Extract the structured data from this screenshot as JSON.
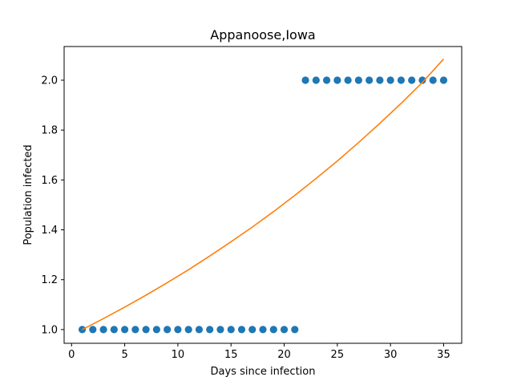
{
  "chart_data": {
    "type": "scatter",
    "title": "Appanoose,Iowa",
    "xlabel": "Days since infection",
    "ylabel": "Population infected",
    "xlim": [
      -0.7,
      36.7
    ],
    "ylim": [
      0.945,
      2.135
    ],
    "xticks": [
      0,
      5,
      10,
      15,
      20,
      25,
      30,
      35
    ],
    "yticks": [
      1.0,
      1.2,
      1.4,
      1.6,
      1.8,
      2.0
    ],
    "ytick_labels": [
      "1.0",
      "1.2",
      "1.4",
      "1.6",
      "1.8",
      "2.0"
    ],
    "grid": false,
    "series": [
      {
        "kind": "scatter",
        "color": "#1f77b4",
        "x": [
          1,
          2,
          3,
          4,
          5,
          6,
          7,
          8,
          9,
          10,
          11,
          12,
          13,
          14,
          15,
          16,
          17,
          18,
          19,
          20,
          21,
          22,
          23,
          24,
          25,
          26,
          27,
          28,
          29,
          30,
          31,
          32,
          33,
          34,
          35
        ],
        "y": [
          1,
          1,
          1,
          1,
          1,
          1,
          1,
          1,
          1,
          1,
          1,
          1,
          1,
          1,
          1,
          1,
          1,
          1,
          1,
          1,
          1,
          2,
          2,
          2,
          2,
          2,
          2,
          2,
          2,
          2,
          2,
          2,
          2,
          2,
          2
        ]
      },
      {
        "kind": "line",
        "color": "#ff7f0e",
        "x": [
          1,
          3,
          5,
          7,
          9,
          11,
          13,
          15,
          17,
          19,
          21,
          23,
          25,
          27,
          29,
          31,
          33,
          35
        ],
        "y": [
          1.0,
          1.044,
          1.09,
          1.138,
          1.188,
          1.24,
          1.295,
          1.352,
          1.411,
          1.473,
          1.538,
          1.606,
          1.676,
          1.75,
          1.827,
          1.907,
          1.991,
          2.085
        ]
      }
    ]
  }
}
